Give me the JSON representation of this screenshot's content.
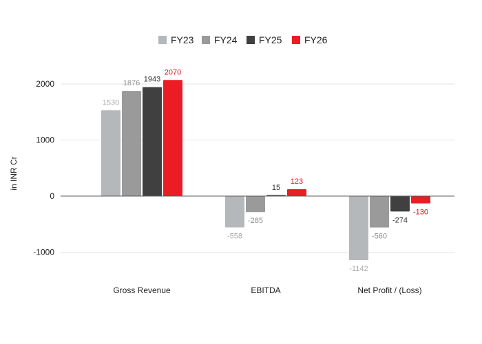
{
  "chart_data": {
    "type": "bar",
    "title": "",
    "xlabel": "",
    "ylabel": "in INR Cr",
    "categories": [
      "Gross Revenue",
      "EBITDA",
      "Net Profit / (Loss)"
    ],
    "ylim": [
      -1200,
      2100
    ],
    "yticks": [
      -1000,
      0,
      1000,
      2000
    ],
    "grid": true,
    "legend_position": "top-center",
    "series": [
      {
        "name": "FY23",
        "color": "#b5b8bb",
        "label_color": "#aaaaaa",
        "values": [
          1530,
          -558,
          -1142
        ]
      },
      {
        "name": "FY24",
        "color": "#9a9a9a",
        "label_color": "#8f8f8f",
        "values": [
          1876,
          -285,
          -560
        ]
      },
      {
        "name": "FY25",
        "color": "#404040",
        "label_color": "#333333",
        "values": [
          1943,
          15,
          -274
        ]
      },
      {
        "name": "FY26",
        "color": "#ec1c24",
        "label_color": "#e0141e",
        "values": [
          2070,
          123,
          -130
        ]
      }
    ]
  }
}
